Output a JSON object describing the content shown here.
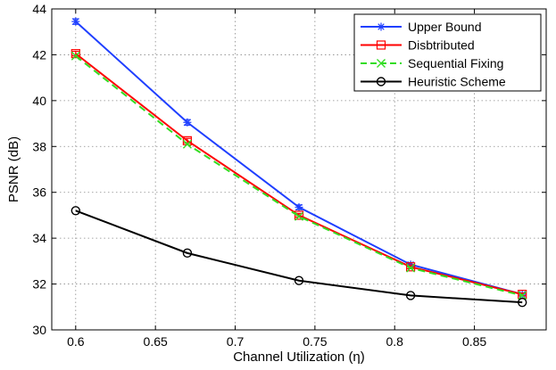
{
  "chart_data": {
    "type": "line",
    "title": "",
    "xlabel": "Channel Utilization (η)",
    "ylabel": "PSNR (dB)",
    "x": [
      0.6,
      0.67,
      0.74,
      0.81,
      0.88
    ],
    "xlim": [
      0.585,
      0.895
    ],
    "ylim": [
      30,
      44
    ],
    "xticks": [
      0.6,
      0.65,
      0.7,
      0.75,
      0.8,
      0.85
    ],
    "xtick_labels": [
      "0.6",
      "0.65",
      "0.7",
      "0.75",
      "0.8",
      "0.85"
    ],
    "yticks": [
      30,
      32,
      34,
      36,
      38,
      40,
      42,
      44
    ],
    "ytick_labels": [
      "30",
      "32",
      "34",
      "36",
      "38",
      "40",
      "42",
      "44"
    ],
    "grid": true,
    "legend_position": "top-right",
    "series": [
      {
        "name": "Upper Bound",
        "color": "#1f3fff",
        "marker": "star",
        "dashed": false,
        "values": [
          43.45,
          39.05,
          35.35,
          32.85,
          31.55
        ],
        "error": [
          0.12,
          0.12,
          0.1,
          0.08,
          0.06
        ]
      },
      {
        "name": "Disbtributed",
        "color": "#ff0000",
        "marker": "square",
        "dashed": false,
        "values": [
          42.05,
          38.25,
          35.0,
          32.75,
          31.55
        ],
        "error": [
          0.1,
          0.1,
          0.08,
          0.08,
          0.06
        ]
      },
      {
        "name": "Sequential Fixing",
        "color": "#33dd22",
        "marker": "x",
        "dashed": true,
        "values": [
          41.95,
          38.1,
          34.95,
          32.7,
          31.5
        ],
        "error": [
          0,
          0,
          0,
          0,
          0
        ]
      },
      {
        "name": "Heuristic Scheme",
        "color": "#000000",
        "marker": "circle",
        "dashed": false,
        "values": [
          35.2,
          33.35,
          32.15,
          31.5,
          31.2
        ],
        "error": [
          0,
          0,
          0,
          0,
          0
        ]
      }
    ]
  }
}
